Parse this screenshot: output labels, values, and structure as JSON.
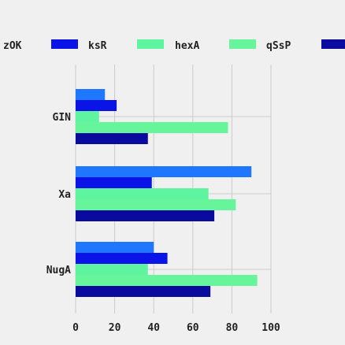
{
  "chart_data": {
    "type": "bar",
    "orientation": "horizontal",
    "grid": true,
    "legend_position": "top",
    "xlim": [
      0,
      100
    ],
    "x_ticks": [
      0,
      20,
      40,
      60,
      80,
      100
    ],
    "categories": [
      "GIN",
      "Xa",
      "NugA"
    ],
    "series": [
      {
        "name": "zOK",
        "color": "#1f77ff",
        "values": [
          15,
          90,
          40
        ]
      },
      {
        "name": "ksR",
        "color": "#0a14e6",
        "values": [
          21,
          39,
          47
        ]
      },
      {
        "name": "hexA",
        "color": "#5ff5a0",
        "values": [
          12,
          68,
          37
        ]
      },
      {
        "name": "qSsP",
        "color": "#66f59a",
        "values": [
          78,
          82,
          93
        ]
      },
      {
        "name": "",
        "color": "#0a0a9e",
        "values": [
          37,
          71,
          69
        ]
      }
    ]
  }
}
